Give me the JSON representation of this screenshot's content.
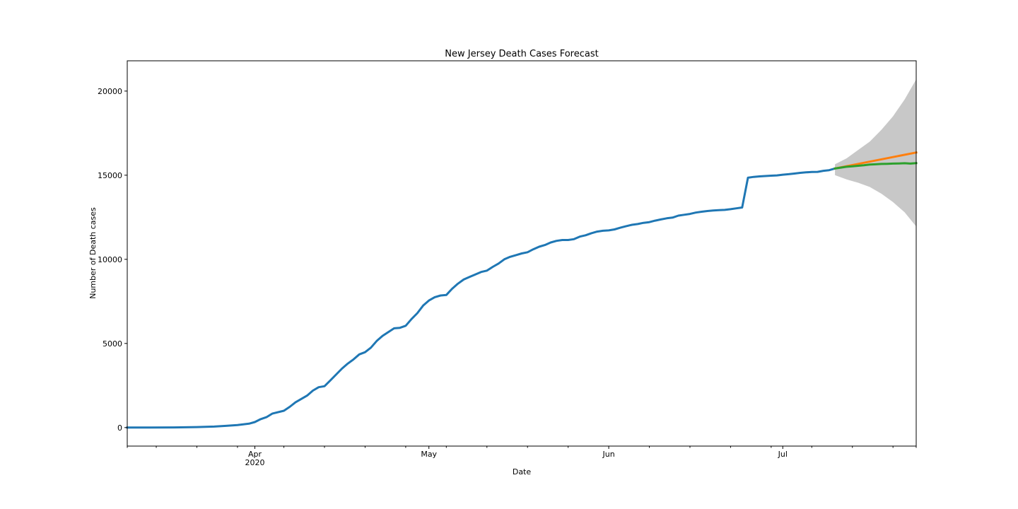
{
  "chart_data": {
    "type": "line",
    "title": "New Jersey Death Cases Forecast",
    "xlabel": "Date",
    "ylabel": "Number of Death cases",
    "xlim": [
      "2020-03-10",
      "2020-07-24"
    ],
    "ylim": [
      -1100,
      21800
    ],
    "grid": false,
    "legend": "none",
    "x_major_ticks": [
      {
        "date": "2020-04-01",
        "label": "Apr",
        "sublabel": "2020"
      },
      {
        "date": "2020-05-01",
        "label": "May",
        "sublabel": ""
      },
      {
        "date": "2020-06-01",
        "label": "Jun",
        "sublabel": ""
      },
      {
        "date": "2020-07-01",
        "label": "Jul",
        "sublabel": ""
      }
    ],
    "x_minor_ticks": [
      "2020-03-10",
      "2020-03-15",
      "2020-03-22",
      "2020-03-29",
      "2020-04-06",
      "2020-04-13",
      "2020-04-20",
      "2020-04-27",
      "2020-05-04",
      "2020-05-11",
      "2020-05-18",
      "2020-05-25",
      "2020-06-08",
      "2020-06-15",
      "2020-06-22",
      "2020-06-29",
      "2020-07-06",
      "2020-07-13",
      "2020-07-20",
      "2020-07-24"
    ],
    "y_ticks": [
      {
        "value": 0,
        "label": "0"
      },
      {
        "value": 5000,
        "label": "5000"
      },
      {
        "value": 10000,
        "label": "10000"
      },
      {
        "value": 15000,
        "label": "15000"
      },
      {
        "value": 20000,
        "label": "20000"
      }
    ],
    "series": [
      {
        "color": "#1f77b4",
        "points": [
          [
            "2020-03-10",
            1
          ],
          [
            "2020-03-14",
            2
          ],
          [
            "2020-03-18",
            10
          ],
          [
            "2020-03-22",
            30
          ],
          [
            "2020-03-25",
            60
          ],
          [
            "2020-03-27",
            100
          ],
          [
            "2020-03-29",
            150
          ],
          [
            "2020-03-31",
            230
          ],
          [
            "2020-04-01",
            330
          ],
          [
            "2020-04-02",
            500
          ],
          [
            "2020-04-03",
            620
          ],
          [
            "2020-04-04",
            830
          ],
          [
            "2020-04-06",
            1000
          ],
          [
            "2020-04-07",
            1230
          ],
          [
            "2020-04-08",
            1500
          ],
          [
            "2020-04-10",
            1900
          ],
          [
            "2020-04-11",
            2200
          ],
          [
            "2020-04-12",
            2400
          ],
          [
            "2020-04-13",
            2460
          ],
          [
            "2020-04-14",
            2800
          ],
          [
            "2020-04-16",
            3500
          ],
          [
            "2020-04-17",
            3800
          ],
          [
            "2020-04-18",
            4050
          ],
          [
            "2020-04-19",
            4350
          ],
          [
            "2020-04-20",
            4480
          ],
          [
            "2020-04-21",
            4750
          ],
          [
            "2020-04-22",
            5150
          ],
          [
            "2020-04-23",
            5450
          ],
          [
            "2020-04-25",
            5900
          ],
          [
            "2020-04-26",
            5930
          ],
          [
            "2020-04-27",
            6050
          ],
          [
            "2020-04-28",
            6450
          ],
          [
            "2020-04-29",
            6800
          ],
          [
            "2020-04-30",
            7250
          ],
          [
            "2020-05-01",
            7550
          ],
          [
            "2020-05-02",
            7750
          ],
          [
            "2020-05-03",
            7850
          ],
          [
            "2020-05-04",
            7880
          ],
          [
            "2020-05-05",
            8250
          ],
          [
            "2020-05-06",
            8550
          ],
          [
            "2020-05-07",
            8800
          ],
          [
            "2020-05-08",
            8950
          ],
          [
            "2020-05-09",
            9100
          ],
          [
            "2020-05-10",
            9250
          ],
          [
            "2020-05-11",
            9330
          ],
          [
            "2020-05-12",
            9550
          ],
          [
            "2020-05-13",
            9750
          ],
          [
            "2020-05-14",
            10000
          ],
          [
            "2020-05-15",
            10150
          ],
          [
            "2020-05-16",
            10250
          ],
          [
            "2020-05-17",
            10350
          ],
          [
            "2020-05-18",
            10420
          ],
          [
            "2020-05-19",
            10600
          ],
          [
            "2020-05-20",
            10750
          ],
          [
            "2020-05-21",
            10850
          ],
          [
            "2020-05-22",
            11000
          ],
          [
            "2020-05-23",
            11100
          ],
          [
            "2020-05-24",
            11150
          ],
          [
            "2020-05-25",
            11150
          ],
          [
            "2020-05-26",
            11200
          ],
          [
            "2020-05-27",
            11350
          ],
          [
            "2020-05-28",
            11430
          ],
          [
            "2020-05-29",
            11550
          ],
          [
            "2020-05-30",
            11650
          ],
          [
            "2020-05-31",
            11700
          ],
          [
            "2020-06-01",
            11720
          ],
          [
            "2020-06-02",
            11780
          ],
          [
            "2020-06-03",
            11880
          ],
          [
            "2020-06-04",
            11970
          ],
          [
            "2020-06-05",
            12050
          ],
          [
            "2020-06-06",
            12100
          ],
          [
            "2020-06-07",
            12170
          ],
          [
            "2020-06-08",
            12210
          ],
          [
            "2020-06-09",
            12300
          ],
          [
            "2020-06-10",
            12370
          ],
          [
            "2020-06-11",
            12440
          ],
          [
            "2020-06-12",
            12480
          ],
          [
            "2020-06-13",
            12600
          ],
          [
            "2020-06-14",
            12650
          ],
          [
            "2020-06-15",
            12700
          ],
          [
            "2020-06-16",
            12780
          ],
          [
            "2020-06-17",
            12830
          ],
          [
            "2020-06-18",
            12870
          ],
          [
            "2020-06-19",
            12900
          ],
          [
            "2020-06-20",
            12920
          ],
          [
            "2020-06-21",
            12940
          ],
          [
            "2020-06-22",
            12980
          ],
          [
            "2020-06-23",
            13030
          ],
          [
            "2020-06-24",
            13080
          ],
          [
            "2020-06-25",
            14850
          ],
          [
            "2020-06-26",
            14900
          ],
          [
            "2020-06-27",
            14930
          ],
          [
            "2020-06-28",
            14950
          ],
          [
            "2020-06-29",
            14970
          ],
          [
            "2020-06-30",
            14990
          ],
          [
            "2020-07-01",
            15030
          ],
          [
            "2020-07-02",
            15060
          ],
          [
            "2020-07-03",
            15100
          ],
          [
            "2020-07-04",
            15140
          ],
          [
            "2020-07-05",
            15170
          ],
          [
            "2020-07-06",
            15190
          ],
          [
            "2020-07-07",
            15200
          ],
          [
            "2020-07-08",
            15260
          ],
          [
            "2020-07-09",
            15300
          ],
          [
            "2020-07-10",
            15400
          ]
        ]
      },
      {
        "color": "#ff7f0e",
        "points": [
          [
            "2020-07-10",
            15400
          ],
          [
            "2020-07-24",
            16350
          ]
        ]
      },
      {
        "color": "#2ca02c",
        "points": [
          [
            "2020-07-10",
            15400
          ],
          [
            "2020-07-11",
            15450
          ],
          [
            "2020-07-12",
            15500
          ],
          [
            "2020-07-13",
            15530
          ],
          [
            "2020-07-14",
            15560
          ],
          [
            "2020-07-15",
            15590
          ],
          [
            "2020-07-16",
            15630
          ],
          [
            "2020-07-17",
            15650
          ],
          [
            "2020-07-18",
            15670
          ],
          [
            "2020-07-19",
            15680
          ],
          [
            "2020-07-20",
            15690
          ],
          [
            "2020-07-21",
            15700
          ],
          [
            "2020-07-22",
            15710
          ],
          [
            "2020-07-23",
            15690
          ],
          [
            "2020-07-24",
            15720
          ]
        ]
      }
    ],
    "confidence_band": {
      "color": "#c8c8c8",
      "points": [
        {
          "x": "2020-07-10",
          "lower": 15000,
          "upper": 15650
        },
        {
          "x": "2020-07-12",
          "lower": 14750,
          "upper": 16000
        },
        {
          "x": "2020-07-14",
          "lower": 14550,
          "upper": 16500
        },
        {
          "x": "2020-07-16",
          "lower": 14300,
          "upper": 17000
        },
        {
          "x": "2020-07-18",
          "lower": 13900,
          "upper": 17700
        },
        {
          "x": "2020-07-20",
          "lower": 13400,
          "upper": 18500
        },
        {
          "x": "2020-07-22",
          "lower": 12800,
          "upper": 19500
        },
        {
          "x": "2020-07-24",
          "lower": 11950,
          "upper": 20700
        }
      ]
    }
  }
}
